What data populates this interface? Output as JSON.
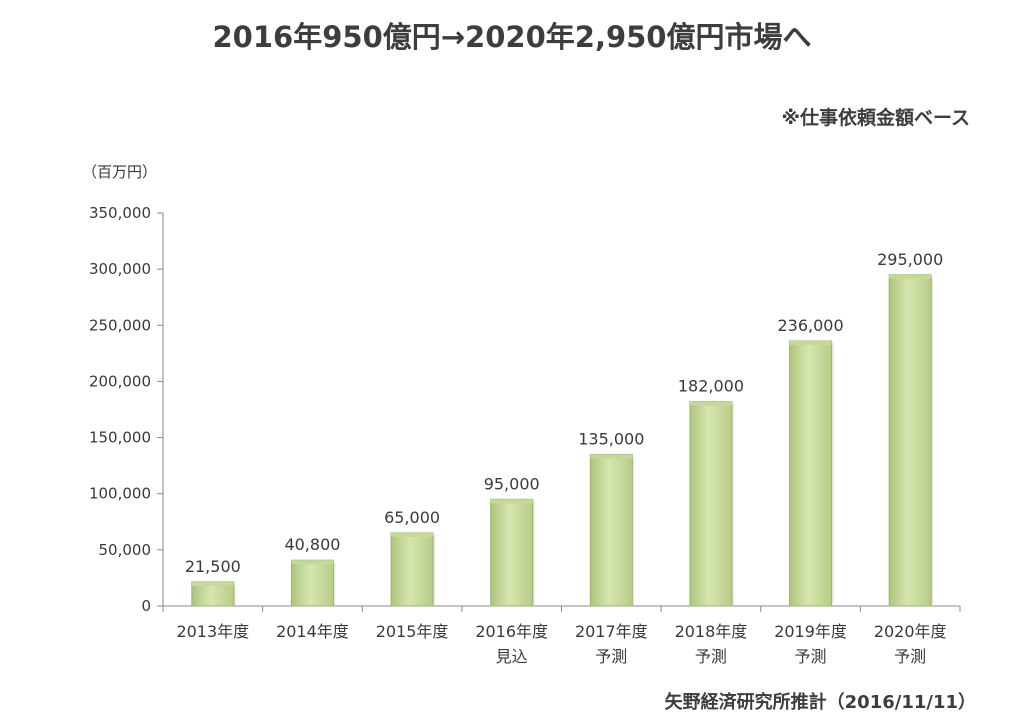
{
  "title": "2016年950億円→2020年2,950億円市場へ",
  "note": "※仕事依頼金額ベース",
  "source": "矢野経済研究所推計（2016/11/11）",
  "colors": {
    "bar_fill": "#c4d89a",
    "bar_stroke": "#9bb46a",
    "axis": "#8a8a8a"
  },
  "chart_data": {
    "type": "bar",
    "y_unit_label": "（百万円）",
    "categories": [
      [
        "2013年度"
      ],
      [
        "2014年度"
      ],
      [
        "2015年度"
      ],
      [
        "2016年度",
        "見込"
      ],
      [
        "2017年度",
        "予測"
      ],
      [
        "2018年度",
        "予測"
      ],
      [
        "2019年度",
        "予測"
      ],
      [
        "2020年度",
        "予測"
      ]
    ],
    "values": [
      21500,
      40800,
      65000,
      95000,
      135000,
      182000,
      236000,
      295000
    ],
    "data_labels": [
      "21,500",
      "40,800",
      "65,000",
      "95,000",
      "135,000",
      "182,000",
      "236,000",
      "295,000"
    ],
    "ylim": [
      0,
      350000
    ],
    "yticks": [
      0,
      50000,
      100000,
      150000,
      200000,
      250000,
      300000,
      350000
    ],
    "ytick_labels": [
      "0",
      "50,000",
      "100,000",
      "150,000",
      "200,000",
      "250,000",
      "300,000",
      "350,000"
    ],
    "grid": false,
    "legend": "none"
  }
}
